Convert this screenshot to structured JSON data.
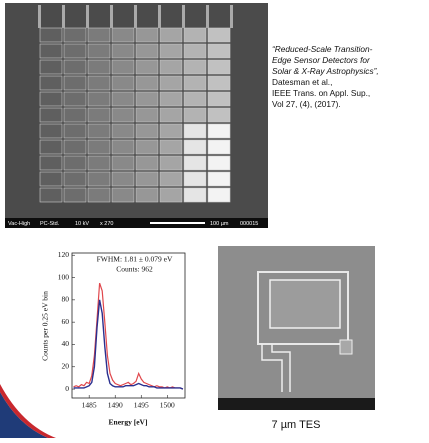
{
  "citation": {
    "title_lines": [
      "“Reduced-Scale Transition-",
      "Edge Sensor Detectors for",
      "Solar & X-Ray Astrophysics”,"
    ],
    "authors": "Datesman et al.,",
    "journal": "IEEE Trans. on Appl. Sup.,",
    "volume": "Vol 27, (4), (2017)."
  },
  "sem_image": {
    "info_bar": [
      "Vac-High",
      "PC-Std.",
      "10 kV",
      "x 270",
      "100 µm",
      "000015"
    ]
  },
  "chart_data": {
    "type": "line",
    "ylabel": "Counts per 0.25 eV bin",
    "xlabel": "Energy [eV]",
    "annotations": [
      "FWHM: 1.81 ± 0.079 eV",
      "Counts: 962"
    ],
    "x": [
      1482,
      1482.5,
      1483,
      1483.5,
      1484,
      1484.5,
      1485,
      1485.5,
      1486,
      1486.5,
      1487,
      1487.5,
      1488,
      1488.5,
      1489,
      1489.5,
      1490,
      1490.5,
      1491,
      1491.5,
      1492,
      1492.5,
      1493,
      1493.5,
      1494,
      1494.5,
      1495,
      1495.5,
      1496,
      1496.5,
      1497,
      1497.5,
      1498,
      1498.5,
      1499,
      1499.5,
      1500,
      1500.5,
      1501,
      1501.5,
      1502,
      1502.5,
      1503
    ],
    "series": [
      {
        "color": "#e0474c",
        "values": [
          2,
          3,
          2,
          4,
          3,
          6,
          5,
          12,
          30,
          62,
          95,
          88,
          60,
          30,
          14,
          8,
          5,
          4,
          3,
          4,
          5,
          6,
          4,
          5,
          7,
          14,
          9,
          6,
          5,
          4,
          3,
          2,
          3,
          2,
          2,
          1,
          2,
          1,
          2,
          1,
          1,
          1,
          0
        ]
      },
      {
        "color": "#2a2f8f",
        "values": [
          1,
          1,
          1,
          1,
          1,
          2,
          3,
          6,
          20,
          55,
          80,
          68,
          38,
          14,
          5,
          3,
          2,
          2,
          2,
          2,
          3,
          3,
          3,
          3,
          4,
          5,
          4,
          3,
          3,
          2,
          2,
          2,
          1,
          1,
          1,
          1,
          1,
          1,
          1,
          1,
          1,
          1,
          0
        ]
      }
    ],
    "xlim": [
      1481.7,
      1503.4
    ],
    "ylim": [
      -8,
      122
    ],
    "xticks": [
      1485,
      1490,
      1495,
      1500
    ],
    "yticks": [
      0,
      20,
      40,
      60,
      80,
      100,
      120
    ]
  },
  "caption": "7 µm TES"
}
